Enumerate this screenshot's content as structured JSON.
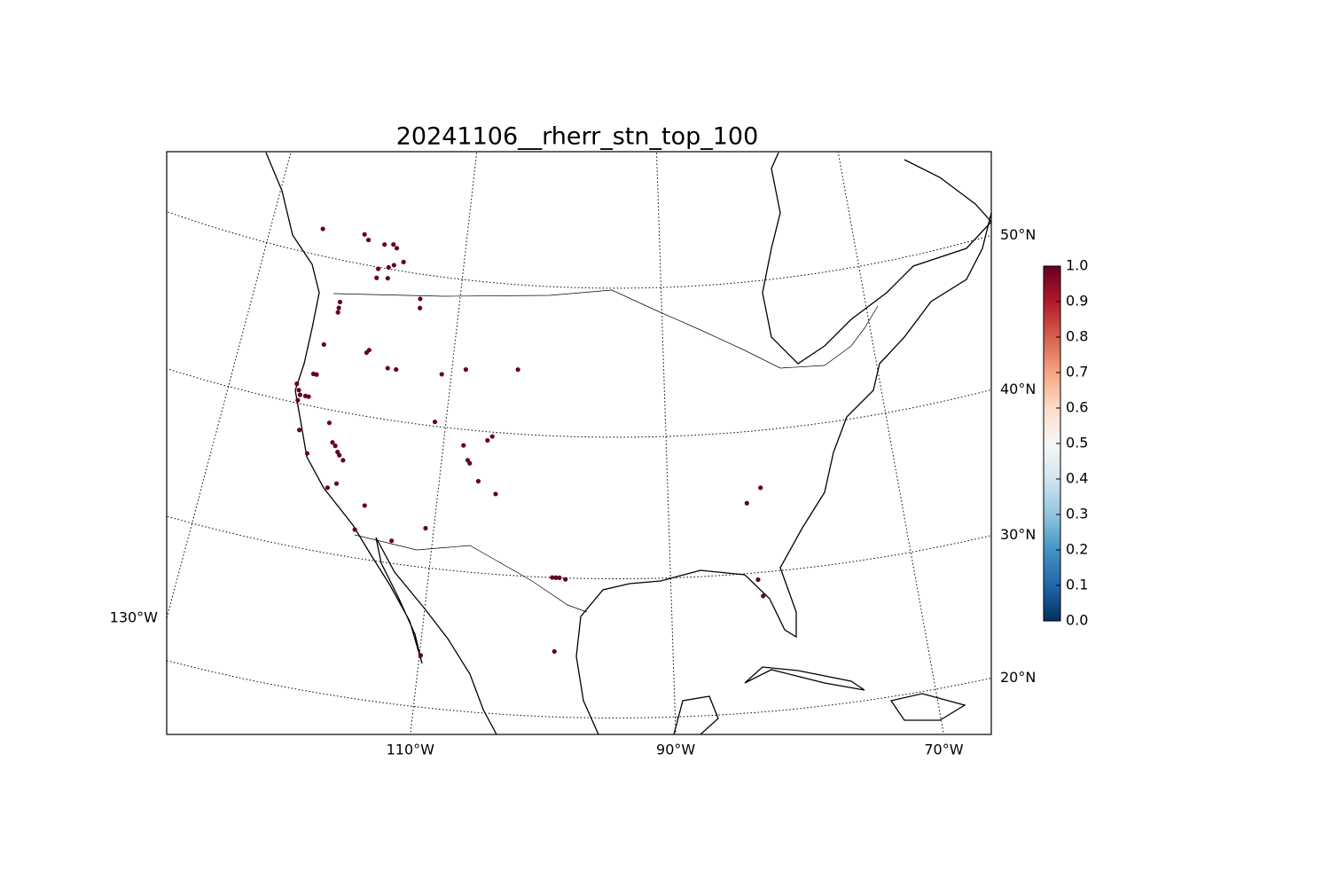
{
  "chart_data": {
    "type": "scatter",
    "title": "20241106__rherr_stn_top_100",
    "x": [
      -124.8,
      -120.5,
      -120.0,
      -118.3,
      -117.4,
      -117.0,
      -118.5,
      -117.5,
      -117.0,
      -116.1,
      -118.5,
      -117.4,
      -121.6,
      -121.6,
      -121.6,
      -113.9,
      -113.8,
      -122.3,
      -118.2,
      -118.0,
      -122.7,
      -122.4,
      -116.0,
      -115.2,
      -110.9,
      -108.7,
      -103.8,
      -124.0,
      -123.7,
      -123.5,
      -123.6,
      -123.0,
      -122.7,
      -120.4,
      -111.0,
      -119.8,
      -119.5,
      -122.9,
      -121.8,
      -119.2,
      -119.0,
      -118.6,
      -108.2,
      -106.1,
      -105.7,
      -107.7,
      -107.5,
      -106.6,
      -105.0,
      -119.5,
      -118.8,
      -116.1,
      -116.6,
      -113.4,
      -110.7,
      -99.8,
      -99.5,
      -99.2,
      -98.7,
      -81.9,
      -83.2,
      -82.8,
      -82.5,
      -99.4,
      -109.9
    ],
    "y": [
      51.7,
      51.9,
      51.6,
      51.5,
      51.6,
      51.4,
      49.9,
      50.1,
      50.3,
      50.6,
      49.3,
      49.4,
      47.3,
      46.9,
      46.6,
      48.4,
      47.8,
      44.3,
      44.3,
      44.5,
      42.2,
      42.2,
      43.5,
      43.5,
      43.6,
      44.1,
      44.4,
      41.3,
      40.9,
      40.6,
      40.2,
      40.6,
      40.6,
      39.1,
      40.3,
      37.8,
      37.6,
      38.2,
      36.7,
      37.2,
      37.0,
      36.7,
      38.9,
      39.4,
      39.7,
      37.9,
      37.7,
      36.5,
      35.7,
      34.6,
      35.0,
      33.8,
      32.0,
      31.6,
      32.8,
      30.0,
      30.0,
      30.0,
      29.9,
      36.0,
      35.0,
      29.5,
      28.3,
      24.7,
      23.7
    ],
    "values": [
      1.0,
      1.0,
      1.0,
      1.0,
      1.0,
      1.0,
      1.0,
      1.0,
      1.0,
      1.0,
      1.0,
      1.0,
      1.0,
      1.0,
      1.0,
      1.0,
      1.0,
      1.0,
      1.0,
      1.0,
      1.0,
      1.0,
      1.0,
      1.0,
      1.0,
      1.0,
      1.0,
      1.0,
      1.0,
      1.0,
      1.0,
      1.0,
      1.0,
      1.0,
      1.0,
      1.0,
      1.0,
      1.0,
      1.0,
      1.0,
      1.0,
      1.0,
      1.0,
      1.0,
      1.0,
      1.0,
      1.0,
      1.0,
      1.0,
      1.0,
      1.0,
      1.0,
      1.0,
      1.0,
      1.0,
      1.0,
      1.0,
      1.0,
      1.0,
      1.0,
      1.0,
      1.0,
      1.0,
      1.0,
      1.0
    ],
    "xticks": [
      {
        "value": -130,
        "label": "130°W"
      },
      {
        "value": -110,
        "label": "110°W"
      },
      {
        "value": -90,
        "label": "90°W"
      },
      {
        "value": -70,
        "label": "70°W"
      }
    ],
    "yticks": [
      {
        "value": 20,
        "label": "20°N"
      },
      {
        "value": 30,
        "label": "30°N"
      },
      {
        "value": 40,
        "label": "40°N"
      },
      {
        "value": 50,
        "label": "50°N"
      }
    ],
    "grid": true,
    "colorbar": {
      "lim": [
        0,
        1
      ],
      "colors": [
        "#053061",
        "#2166ac",
        "#4393c3",
        "#92c5de",
        "#d1e5f0",
        "#f7f7f7",
        "#fddbc7",
        "#f4a582",
        "#d6604d",
        "#b2182b",
        "#67001f"
      ],
      "ticks": [
        {
          "value": 0,
          "label": "0.0"
        },
        {
          "value": 0.1,
          "label": "0.1"
        },
        {
          "value": 0.2,
          "label": "0.2"
        },
        {
          "value": 0.3,
          "label": "0.3"
        },
        {
          "value": 0.4,
          "label": "0.4"
        },
        {
          "value": 0.5,
          "label": "0.5"
        },
        {
          "value": 0.6,
          "label": "0.6"
        },
        {
          "value": 0.7,
          "label": "0.7"
        },
        {
          "value": 0.8,
          "label": "0.8"
        },
        {
          "value": 0.9,
          "label": "0.9"
        },
        {
          "value": 1,
          "label": "1.0"
        }
      ]
    }
  }
}
